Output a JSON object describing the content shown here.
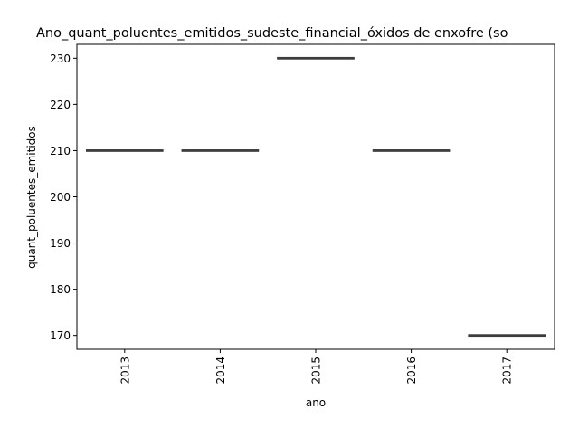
{
  "chart_data": {
    "type": "box",
    "title": "Ano_quant_poluentes_emitidos_sudeste_financial_óxidos de enxofre (so",
    "xlabel": "ano",
    "ylabel": "quant_poluentes_emitidos",
    "categories": [
      "2013",
      "2014",
      "2015",
      "2016",
      "2017"
    ],
    "values": [
      210,
      210,
      230,
      210,
      170
    ],
    "ylim": [
      167,
      233
    ],
    "yticks": [
      170,
      180,
      190,
      200,
      210,
      220,
      230
    ],
    "x_tick_rotation": "vertical",
    "grid": false,
    "legend": "none"
  }
}
